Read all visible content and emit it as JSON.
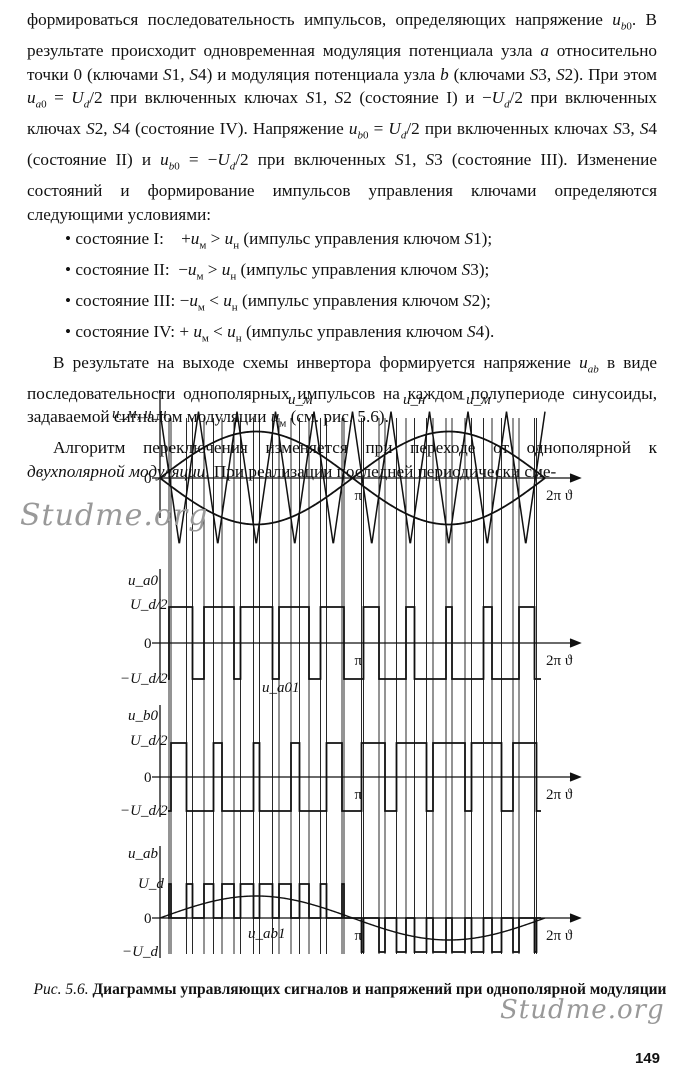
{
  "text": {
    "p1": "формироваться последовательность импульсов, определяющих напряжение u_b0. В результате происходит одновременная модуляция потенциала узла a относительно точки 0 (ключами S1, S4) и модуляция потенциала узла b (ключами S3, S2). При этом u_a0 = U_d/2 при включенных ключах S1, S2 (состояние I) и −U_d/2 при включенных ключах S2, S4 (состояние IV). Напряжение u_b0 = U_d/2 при включенных ключах S3, S4 (состояние II) и u_b0 = −U_d/2 при включенных S1, S3 (состояние III). Изменение состояний и формирование импульсов управления ключами определяются следующими условиями:",
    "bullets": [
      "состояние I:   +u_м > u_н (импульс управления ключом S1);",
      "состояние II:  −u_м > u_н (импульс управления ключом S3);",
      "состояние III: −u_м < u_н (импульс управления ключом S2);",
      "состояние IV: + u_м < u_н (импульс управления ключом S4)."
    ],
    "p2": "В результате на выходе схемы инвертора формируется напряжение u_ab в виде последовательности однополярных импульсов на каждом полупериоде синусоиды, задаваемой сигналом модуляции u_м (см. рис. 5.6).",
    "p3": "Алгоритм переключения изменяется при переходе от однополярной к двухполярной модуляции. При реализации последней периодически сме-"
  },
  "figure": {
    "labels": {
      "top_y": "u_м, u_н",
      "um": "u_м",
      "un": "u_н",
      "neg_um": "−u_м",
      "zero": "0",
      "pi": "π",
      "two_pi": "2π",
      "theta": "ϑ",
      "ua0": "u_a0",
      "ub0": "u_b0",
      "uab": "u_ab",
      "ud_half": "U_d/2",
      "neg_ud_half": "−U_d/2",
      "Ud": "U_d",
      "neg_Ud": "−U_d",
      "ua01": "u_a01",
      "uab1": "u_ab1"
    },
    "caption_label": "Рис. 5.6.",
    "caption_title": "Диаграммы управляющих сигналов и напряжений при однополярной модуляции"
  },
  "page_number": "149",
  "watermark": "Studme.org"
}
